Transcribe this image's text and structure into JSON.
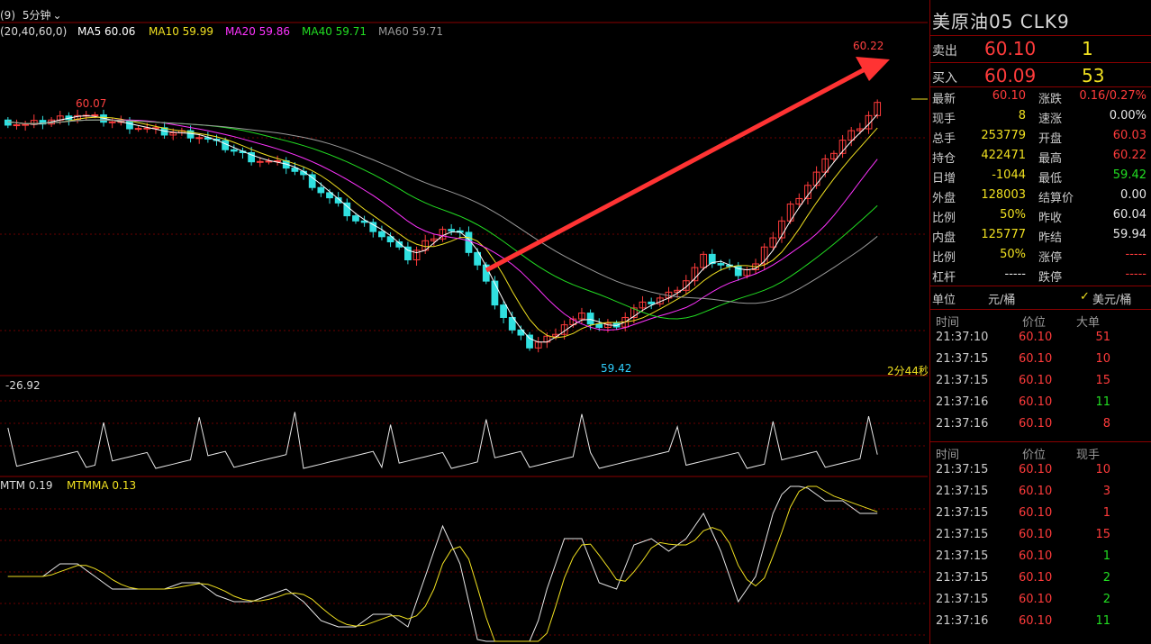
{
  "topbar": {
    "params": "(20,40,60,0)",
    "period": "5分钟",
    "ma5": "MA5 60.06",
    "ma10": "MA10 59.99",
    "ma20": "MA20 59.86",
    "ma40": "MA40 59.71",
    "ma60": "MA60 59.71",
    "colors": {
      "ma5": "#ffffff",
      "ma10": "#f0e020",
      "ma20": "#ff33ff",
      "ma40": "#22dd22",
      "ma60": "#9a9a9a"
    }
  },
  "chart": {
    "high_label": "60.22",
    "low_label": "59.42",
    "left_high_label": "60.07",
    "countdown": "2分44秒",
    "indicator1_value": "-26.92",
    "mtm_label": "MTM 0.19",
    "mtmma_label": "MTMMA 0.13"
  },
  "chart_data": {
    "type": "candlestick",
    "price_high": 60.22,
    "price_low": 59.42,
    "candles_close_approx": [
      60.05,
      60.04,
      60.05,
      60.06,
      60.07,
      60.06,
      60.05,
      60.04,
      60.03,
      60.02,
      60.02,
      60.01,
      59.99,
      59.97,
      59.95,
      59.94,
      59.93,
      59.9,
      59.86,
      59.82,
      59.78,
      59.76,
      59.72,
      59.68,
      59.72,
      59.76,
      59.74,
      59.66,
      59.56,
      59.48,
      59.44,
      59.46,
      59.5,
      59.52,
      59.49,
      59.5,
      59.54,
      59.56,
      59.58,
      59.62,
      59.68,
      59.66,
      59.64,
      59.66,
      59.74,
      59.82,
      59.88,
      59.94,
      60.0,
      60.04,
      60.1
    ]
  },
  "panel": {
    "title": "美原油05  CLK9",
    "sell_label": "卖出",
    "sell_price": "60.10",
    "sell_qty": "1",
    "buy_label": "买入",
    "buy_price": "60.09",
    "buy_qty": "53",
    "stats": [
      {
        "l": "最新",
        "v": "60.10",
        "vc": "red",
        "l2": "涨跌",
        "v2": "0.16/0.27%",
        "v2c": "red"
      },
      {
        "l": "现手",
        "v": "8",
        "vc": "yellow",
        "l2": "速涨",
        "v2": "0.00%",
        "v2c": "white"
      },
      {
        "l": "总手",
        "v": "253779",
        "vc": "yellow",
        "l2": "开盘",
        "v2": "60.03",
        "v2c": "red"
      },
      {
        "l": "持仓",
        "v": "422471",
        "vc": "yellow",
        "l2": "最高",
        "v2": "60.22",
        "v2c": "red"
      },
      {
        "l": "日增",
        "v": "-1044",
        "vc": "yellow",
        "l2": "最低",
        "v2": "59.42",
        "v2c": "green"
      },
      {
        "l": "外盘",
        "v": "128003",
        "vc": "yellow",
        "l2": "结算价",
        "v2": "0.00",
        "v2c": "white"
      },
      {
        "l": "比例",
        "v": "50%",
        "vc": "yellow",
        "l2": "昨收",
        "v2": "60.04",
        "v2c": "white"
      },
      {
        "l": "内盘",
        "v": "125777",
        "vc": "yellow",
        "l2": "昨结",
        "v2": "59.94",
        "v2c": "white"
      },
      {
        "l": "比例",
        "v": "50%",
        "vc": "yellow",
        "l2": "涨停",
        "v2": "-----",
        "v2c": "red"
      },
      {
        "l": "杠杆",
        "v": "-----",
        "vc": "white",
        "l2": "跌停",
        "v2": "-----",
        "v2c": "red"
      }
    ],
    "unit_label": "单位",
    "unit_value": "元/桶",
    "unit_option": "美元/桶",
    "big_header": {
      "time": "时间",
      "price": "价位",
      "qty": "大单"
    },
    "big_orders": [
      {
        "t": "21:37:10",
        "p": "60.10",
        "q": "51",
        "c": "red"
      },
      {
        "t": "21:37:15",
        "p": "60.10",
        "q": "10",
        "c": "red"
      },
      {
        "t": "21:37:15",
        "p": "60.10",
        "q": "15",
        "c": "red"
      },
      {
        "t": "21:37:16",
        "p": "60.10",
        "q": "11",
        "c": "green"
      },
      {
        "t": "21:37:16",
        "p": "60.10",
        "q": "8",
        "c": "red"
      }
    ],
    "tick_header": {
      "time": "时间",
      "price": "价位",
      "qty": "现手"
    },
    "ticks": [
      {
        "t": "21:37:15",
        "p": "60.10",
        "q": "10",
        "c": "red"
      },
      {
        "t": "21:37:15",
        "p": "60.10",
        "q": "3",
        "c": "red"
      },
      {
        "t": "21:37:15",
        "p": "60.10",
        "q": "1",
        "c": "red"
      },
      {
        "t": "21:37:15",
        "p": "60.10",
        "q": "15",
        "c": "red"
      },
      {
        "t": "21:37:15",
        "p": "60.10",
        "q": "1",
        "c": "green"
      },
      {
        "t": "21:37:15",
        "p": "60.10",
        "q": "2",
        "c": "green"
      },
      {
        "t": "21:37:15",
        "p": "60.10",
        "q": "2",
        "c": "green"
      },
      {
        "t": "21:37:16",
        "p": "60.10",
        "q": "11",
        "c": "green"
      }
    ]
  }
}
